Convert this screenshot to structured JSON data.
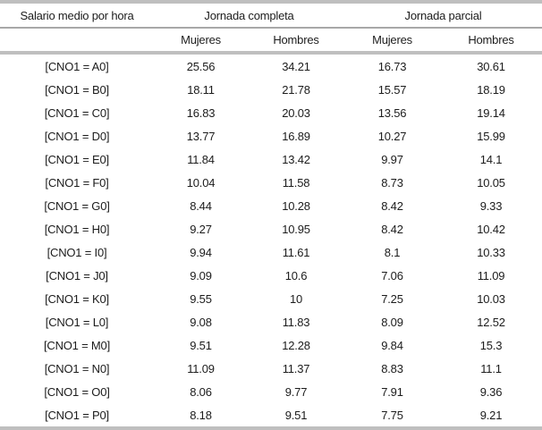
{
  "table": {
    "title": "Salario medio por hora",
    "col_groups": [
      {
        "label": "Jornada completa"
      },
      {
        "label": "Jornada parcial"
      }
    ],
    "sub_headers": [
      "Mujeres",
      "Hombres",
      "Mujeres",
      "Hombres"
    ],
    "rows": [
      {
        "label": "[CNO1 = A0]",
        "values": [
          "25.56",
          "34.21",
          "16.73",
          "30.61"
        ]
      },
      {
        "label": "[CNO1 = B0]",
        "values": [
          "18.11",
          "21.78",
          "15.57",
          "18.19"
        ]
      },
      {
        "label": "[CNO1 = C0]",
        "values": [
          "16.83",
          "20.03",
          "13.56",
          "19.14"
        ]
      },
      {
        "label": "[CNO1 = D0]",
        "values": [
          "13.77",
          "16.89",
          "10.27",
          "15.99"
        ]
      },
      {
        "label": "[CNO1 = E0]",
        "values": [
          "11.84",
          "13.42",
          "9.97",
          "14.1"
        ]
      },
      {
        "label": "[CNO1 = F0]",
        "values": [
          "10.04",
          "11.58",
          "8.73",
          "10.05"
        ]
      },
      {
        "label": "[CNO1 = G0]",
        "values": [
          "8.44",
          "10.28",
          "8.42",
          "9.33"
        ]
      },
      {
        "label": "[CNO1 = H0]",
        "values": [
          "9.27",
          "10.95",
          "8.42",
          "10.42"
        ]
      },
      {
        "label": "[CNO1 = I0]",
        "values": [
          "9.94",
          "11.61",
          "8.1",
          "10.33"
        ]
      },
      {
        "label": "[CNO1 = J0]",
        "values": [
          "9.09",
          "10.6",
          "7.06",
          "11.09"
        ]
      },
      {
        "label": "[CNO1 = K0]",
        "values": [
          "9.55",
          "10",
          "7.25",
          "10.03"
        ]
      },
      {
        "label": "[CNO1 = L0]",
        "values": [
          "9.08",
          "11.83",
          "8.09",
          "12.52"
        ]
      },
      {
        "label": "[CNO1 = M0]",
        "values": [
          "9.51",
          "12.28",
          "9.84",
          "15.3"
        ]
      },
      {
        "label": "[CNO1 = N0]",
        "values": [
          "11.09",
          "11.37",
          "8.83",
          "11.1"
        ]
      },
      {
        "label": "[CNO1 = O0]",
        "values": [
          "8.06",
          "9.77",
          "7.91",
          "9.36"
        ]
      },
      {
        "label": "[CNO1 = P0]",
        "values": [
          "8.18",
          "9.51",
          "7.75",
          "9.21"
        ]
      }
    ]
  },
  "chart_data": {
    "type": "table",
    "title": "Salario medio por hora",
    "column_groups": [
      "Jornada completa",
      "Jornada parcial"
    ],
    "columns": [
      "Jornada completa - Mujeres",
      "Jornada completa - Hombres",
      "Jornada parcial - Mujeres",
      "Jornada parcial - Hombres"
    ],
    "row_labels": [
      "[CNO1 = A0]",
      "[CNO1 = B0]",
      "[CNO1 = C0]",
      "[CNO1 = D0]",
      "[CNO1 = E0]",
      "[CNO1 = F0]",
      "[CNO1 = G0]",
      "[CNO1 = H0]",
      "[CNO1 = I0]",
      "[CNO1 = J0]",
      "[CNO1 = K0]",
      "[CNO1 = L0]",
      "[CNO1 = M0]",
      "[CNO1 = N0]",
      "[CNO1 = O0]",
      "[CNO1 = P0]"
    ],
    "values": [
      [
        25.56,
        34.21,
        16.73,
        30.61
      ],
      [
        18.11,
        21.78,
        15.57,
        18.19
      ],
      [
        16.83,
        20.03,
        13.56,
        19.14
      ],
      [
        13.77,
        16.89,
        10.27,
        15.99
      ],
      [
        11.84,
        13.42,
        9.97,
        14.1
      ],
      [
        10.04,
        11.58,
        8.73,
        10.05
      ],
      [
        8.44,
        10.28,
        8.42,
        9.33
      ],
      [
        9.27,
        10.95,
        8.42,
        10.42
      ],
      [
        9.94,
        11.61,
        8.1,
        10.33
      ],
      [
        9.09,
        10.6,
        7.06,
        11.09
      ],
      [
        9.55,
        10,
        7.25,
        10.03
      ],
      [
        9.08,
        11.83,
        8.09,
        12.52
      ],
      [
        9.51,
        12.28,
        9.84,
        15.3
      ],
      [
        11.09,
        11.37,
        8.83,
        11.1
      ],
      [
        8.06,
        9.77,
        7.91,
        9.36
      ],
      [
        8.18,
        9.51,
        7.75,
        9.21
      ]
    ]
  },
  "colors": {
    "border_thick": "#bfbfbf",
    "border_thin": "#a8a8a8",
    "text": "#1c1c1c",
    "background": "#ffffff"
  }
}
